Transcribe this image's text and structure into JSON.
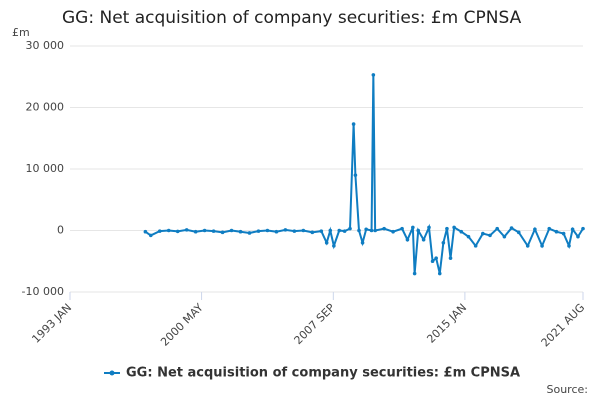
{
  "chart_data": {
    "type": "line",
    "title": "GG: Net acquisition of company securities: £m CPNSA",
    "y_label": "£m",
    "source": "Source:",
    "series": [
      {
        "name": "GG: Net acquisition of company securities: £m CPNSA",
        "color": "#0f7dc2",
        "x": [
          1997.2,
          1997.5,
          1998,
          1998.5,
          1999,
          1999.5,
          2000,
          2000.5,
          2001,
          2001.5,
          2002,
          2002.5,
          2003,
          2003.5,
          2004,
          2004.5,
          2005,
          2005.5,
          2006,
          2006.5,
          2007,
          2007.3,
          2007.5,
          2007.7,
          2008,
          2008.3,
          2008.6,
          2008.8,
          2008.9,
          2009.1,
          2009.3,
          2009.5,
          2009.8,
          2009.9,
          2010,
          2010.5,
          2011,
          2011.5,
          2011.8,
          2012.1,
          2012.2,
          2012.4,
          2012.7,
          2013,
          2013.2,
          2013.4,
          2013.6,
          2013.8,
          2014,
          2014.2,
          2014.4,
          2014.8,
          2015.2,
          2015.6,
          2016,
          2016.4,
          2016.8,
          2017.2,
          2017.6,
          2018,
          2018.5,
          2018.9,
          2019.3,
          2019.7,
          2020.1,
          2020.5,
          2020.8,
          2021,
          2021.3,
          2021.58
        ],
        "values": [
          -200,
          -800,
          -100,
          0,
          -150,
          100,
          -200,
          0,
          -100,
          -300,
          0,
          -200,
          -400,
          -100,
          0,
          -200,
          100,
          -100,
          0,
          -300,
          -100,
          -2000,
          0,
          -2500,
          0,
          -100,
          300,
          17300,
          9000,
          0,
          -2000,
          200,
          0,
          25300,
          0,
          300,
          -200,
          300,
          -1500,
          500,
          -7000,
          0,
          -1500,
          500,
          -5000,
          -4500,
          -7000,
          -2000,
          300,
          -4500,
          500,
          -200,
          -1000,
          -2500,
          -500,
          -800,
          300,
          -1000,
          400,
          -300,
          -2500,
          200,
          -2500,
          300,
          -200,
          -500,
          -2500,
          200,
          -1000,
          300
        ]
      }
    ],
    "xlim": [
      1993,
      2021.58
    ],
    "xticks": [
      {
        "value": 1993,
        "label": "1993 JAN"
      },
      {
        "value": 2000.33,
        "label": "2000 MAY"
      },
      {
        "value": 2007.67,
        "label": "2007 SEP"
      },
      {
        "value": 2015,
        "label": "2015 JAN"
      },
      {
        "value": 2021.58,
        "label": "2021 AUG"
      }
    ],
    "ylim": [
      -10000,
      30000
    ],
    "yticks": [
      {
        "value": -10000,
        "label": "-10 000"
      },
      0,
      {
        "value": 10000,
        "label": "10 000"
      },
      {
        "value": 20000,
        "label": "20 000"
      },
      {
        "value": 30000,
        "label": "30 000"
      }
    ],
    "grid": true
  }
}
